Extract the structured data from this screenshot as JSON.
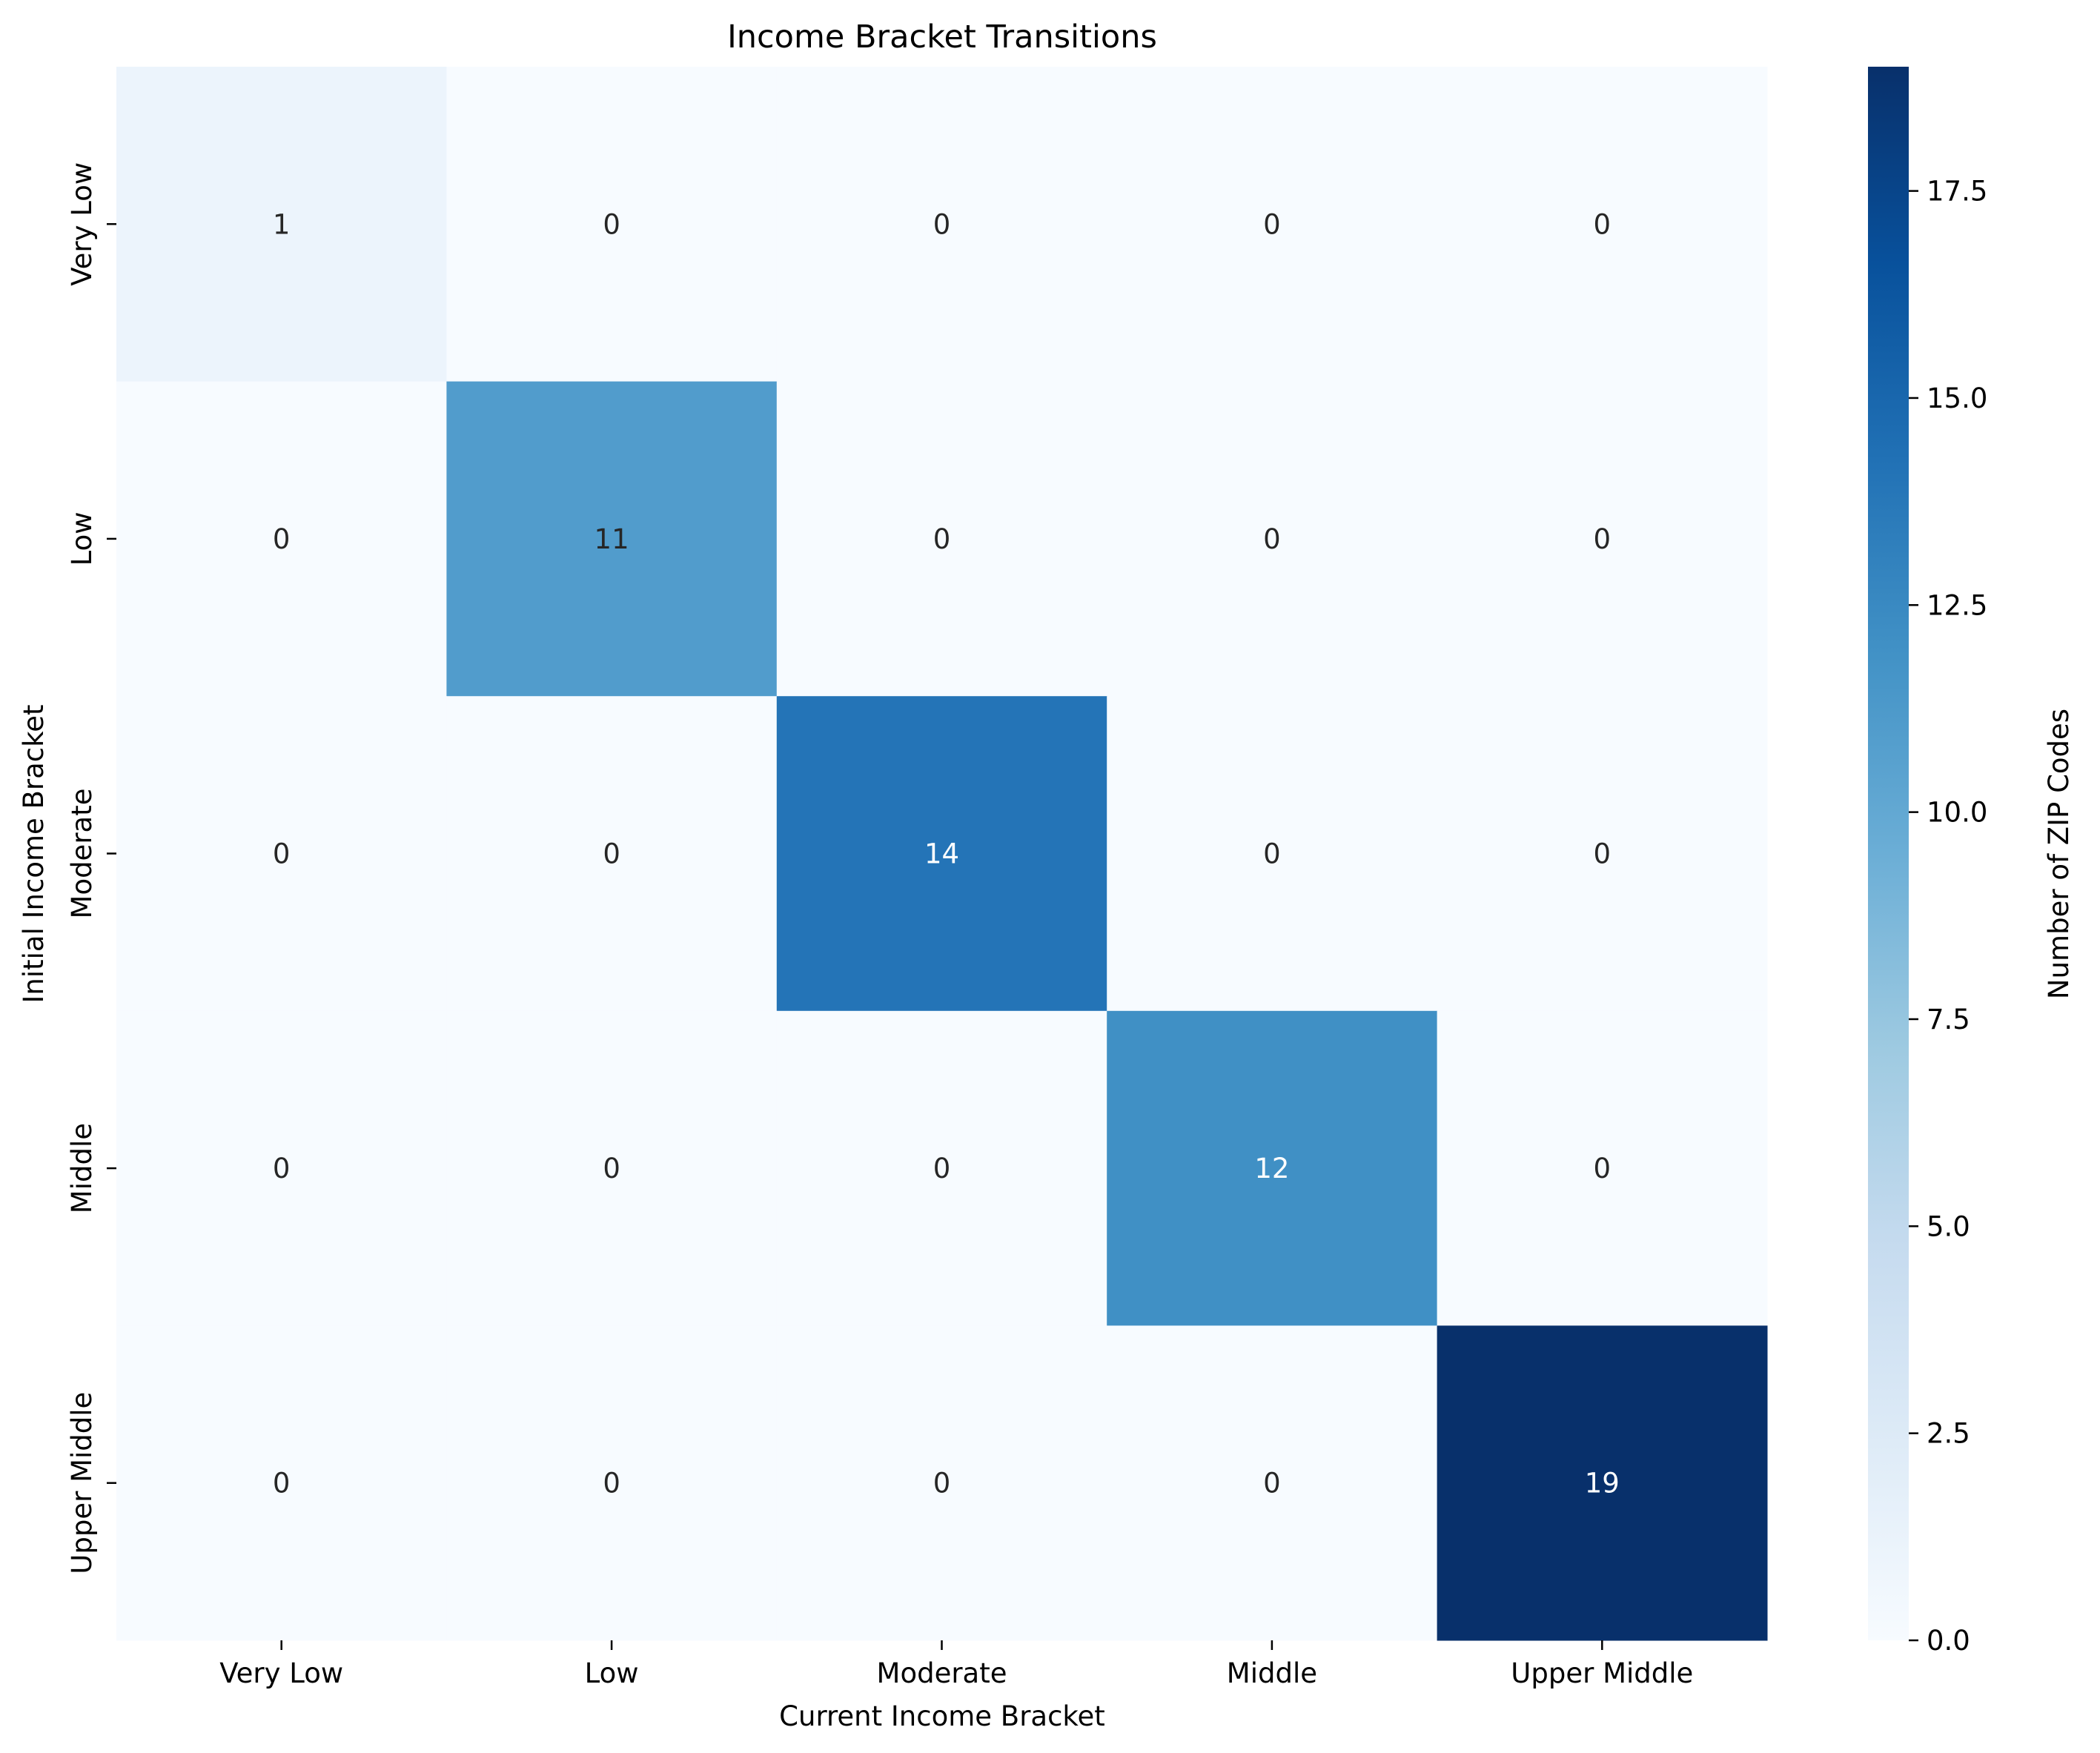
{
  "chart_data": {
    "type": "heatmap",
    "title": "Income Bracket Transitions",
    "xlabel": "Current Income Bracket",
    "ylabel": "Initial Income Bracket",
    "x_categories": [
      "Very Low",
      "Low",
      "Moderate",
      "Middle",
      "Upper Middle"
    ],
    "y_categories": [
      "Very Low",
      "Low",
      "Moderate",
      "Middle",
      "Upper Middle"
    ],
    "values": [
      [
        1,
        0,
        0,
        0,
        0
      ],
      [
        0,
        11,
        0,
        0,
        0
      ],
      [
        0,
        0,
        14,
        0,
        0
      ],
      [
        0,
        0,
        0,
        12,
        0
      ],
      [
        0,
        0,
        0,
        0,
        19
      ]
    ],
    "colormap": "Blues",
    "colorbar": {
      "label": "Number of ZIP Codes",
      "range": [
        0,
        19
      ],
      "ticks": [
        "0.0",
        "2.5",
        "5.0",
        "7.5",
        "10.0",
        "12.5",
        "15.0",
        "17.5"
      ]
    },
    "annotation_colors": {
      "dark_text": "#262626",
      "light_text": "#ffffff"
    },
    "grid": false
  }
}
